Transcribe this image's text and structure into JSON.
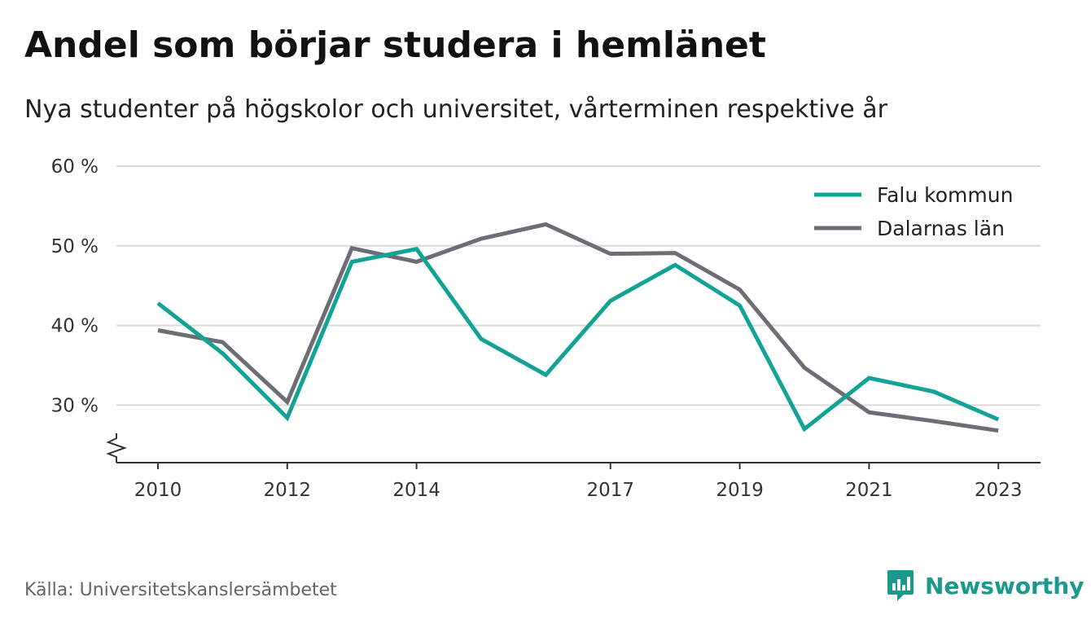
{
  "title": "Andel som börjar studera i hemlänet",
  "subtitle": "Nya studenter på högskolor och universitet, vårterminen respektive år",
  "source": "Källa: Universitetskanslersämbetet",
  "brand": "Newsworthy",
  "colors": {
    "falu": "#13a396",
    "dalarna": "#6e6d75",
    "brand": "#1a9a8c",
    "grid": "#d9d9d9"
  },
  "chart_data": {
    "type": "line",
    "x": [
      2010,
      2011,
      2012,
      2013,
      2014,
      2015,
      2016,
      2017,
      2018,
      2019,
      2020,
      2021,
      2022,
      2023
    ],
    "x_tick_labels": [
      "2010",
      "2012",
      "2014",
      "2017",
      "2019",
      "2021",
      "2023"
    ],
    "y_tick_labels": [
      "60 %",
      "50 %",
      "40 %",
      "30 %"
    ],
    "ylim": [
      23,
      60
    ],
    "y_axis_break": true,
    "grid": true,
    "legend_position": "top-right",
    "series": [
      {
        "name": "Falu kommun",
        "color": "#13a396",
        "values": [
          42.8,
          36.5,
          28.4,
          48.0,
          49.6,
          38.3,
          33.8,
          43.1,
          47.6,
          42.5,
          27.0,
          33.4,
          31.7,
          28.2
        ]
      },
      {
        "name": "Dalarnas län",
        "color": "#6e6d75",
        "values": [
          39.4,
          37.9,
          30.4,
          49.7,
          48.0,
          50.9,
          52.7,
          49.0,
          49.1,
          44.5,
          34.7,
          29.1,
          28.0,
          26.8
        ]
      }
    ]
  }
}
